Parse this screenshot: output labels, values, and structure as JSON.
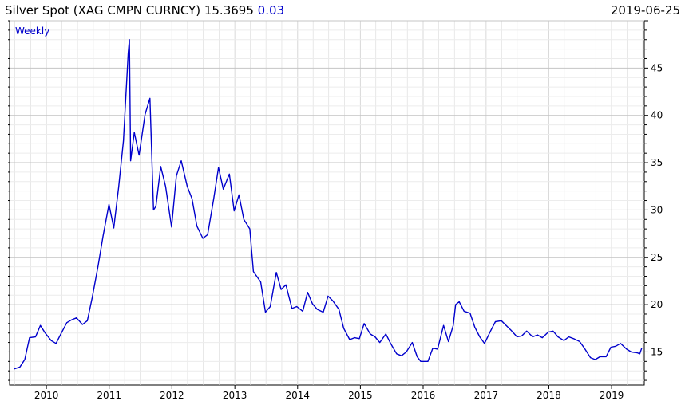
{
  "header": {
    "title": "Silver Spot (XAG CMPN CURNCY)",
    "price": "15.3695",
    "change": "0.03",
    "date": "2019-06-25"
  },
  "colors": {
    "line": "#0000cc",
    "grid": "#d8d8d8",
    "change": "#0000cc"
  },
  "chart_data": {
    "type": "line",
    "frequency_label": "Weekly",
    "x_tick_labels": [
      "2010",
      "2011",
      "2012",
      "2013",
      "2014",
      "2015",
      "2016",
      "2017",
      "2018",
      "2019"
    ],
    "y_tick_labels": [
      "15",
      "20",
      "25",
      "30",
      "35",
      "40",
      "45"
    ],
    "ylim": [
      11.5,
      50
    ],
    "xlim": [
      "2009-06-01",
      "2019-07-10"
    ],
    "grid": true,
    "y_axis_side": "right",
    "series": [
      {
        "x": [
          "2009-06-26",
          "2009-07-31",
          "2009-08-28",
          "2009-09-25",
          "2009-10-30",
          "2009-11-27",
          "2009-12-25",
          "2010-01-29",
          "2010-02-26",
          "2010-03-26",
          "2010-04-30",
          "2010-05-28",
          "2010-06-25",
          "2010-07-30",
          "2010-08-27",
          "2010-09-24",
          "2010-10-29",
          "2010-11-26",
          "2010-12-31",
          "2011-01-28",
          "2011-02-25",
          "2011-03-25",
          "2011-04-22",
          "2011-04-29",
          "2011-05-06",
          "2011-05-27",
          "2011-06-24",
          "2011-07-29",
          "2011-08-26",
          "2011-09-16",
          "2011-09-30",
          "2011-10-28",
          "2011-11-25",
          "2011-12-30",
          "2012-01-27",
          "2012-02-24",
          "2012-03-30",
          "2012-04-27",
          "2012-05-25",
          "2012-06-29",
          "2012-07-27",
          "2012-08-31",
          "2012-09-28",
          "2012-10-26",
          "2012-11-30",
          "2012-12-28",
          "2013-01-25",
          "2013-02-22",
          "2013-03-29",
          "2013-04-19",
          "2013-05-31",
          "2013-06-28",
          "2013-07-26",
          "2013-08-30",
          "2013-09-27",
          "2013-10-25",
          "2013-11-29",
          "2013-12-27",
          "2014-01-31",
          "2014-02-28",
          "2014-03-28",
          "2014-04-25",
          "2014-05-30",
          "2014-06-27",
          "2014-07-25",
          "2014-08-29",
          "2014-09-26",
          "2014-10-31",
          "2014-11-28",
          "2014-12-26",
          "2015-01-23",
          "2015-02-27",
          "2015-03-27",
          "2015-04-24",
          "2015-05-29",
          "2015-06-26",
          "2015-07-31",
          "2015-08-28",
          "2015-09-25",
          "2015-10-30",
          "2015-11-27",
          "2015-12-18",
          "2016-01-29",
          "2016-02-26",
          "2016-03-25",
          "2016-04-29",
          "2016-05-27",
          "2016-06-24",
          "2016-07-08",
          "2016-07-29",
          "2016-08-26",
          "2016-09-30",
          "2016-10-28",
          "2016-11-25",
          "2016-12-23",
          "2017-01-27",
          "2017-02-24",
          "2017-03-31",
          "2017-04-28",
          "2017-05-26",
          "2017-06-30",
          "2017-07-28",
          "2017-08-25",
          "2017-09-29",
          "2017-10-27",
          "2017-11-24",
          "2017-12-29",
          "2018-01-26",
          "2018-02-23",
          "2018-03-30",
          "2018-04-27",
          "2018-05-25",
          "2018-06-29",
          "2018-07-27",
          "2018-08-31",
          "2018-09-28",
          "2018-10-26",
          "2018-11-30",
          "2018-12-28",
          "2019-01-25",
          "2019-02-22",
          "2019-03-29",
          "2019-04-26",
          "2019-05-31",
          "2019-06-14",
          "2019-06-25"
        ],
        "values": [
          13.2,
          13.4,
          14.2,
          16.5,
          16.6,
          17.8,
          17.0,
          16.2,
          15.9,
          16.9,
          18.1,
          18.4,
          18.6,
          17.9,
          18.3,
          20.7,
          24.1,
          27.2,
          30.6,
          28.1,
          32.4,
          37.3,
          46.6,
          48.0,
          35.2,
          38.2,
          35.8,
          40.1,
          41.8,
          30.0,
          30.4,
          34.6,
          32.5,
          28.2,
          33.6,
          35.2,
          32.5,
          31.2,
          28.3,
          27.0,
          27.4,
          31.2,
          34.5,
          32.2,
          33.8,
          29.9,
          31.6,
          29.0,
          28.0,
          23.5,
          22.4,
          19.2,
          19.8,
          23.4,
          21.6,
          22.1,
          19.6,
          19.8,
          19.3,
          21.3,
          20.1,
          19.5,
          19.2,
          20.9,
          20.4,
          19.5,
          17.5,
          16.3,
          16.5,
          16.4,
          18.0,
          16.9,
          16.6,
          16.0,
          16.9,
          15.9,
          14.8,
          14.6,
          15.0,
          16.0,
          14.5,
          14.0,
          14.0,
          15.4,
          15.3,
          17.8,
          16.1,
          17.8,
          20.0,
          20.3,
          19.3,
          19.1,
          17.6,
          16.6,
          15.9,
          17.2,
          18.2,
          18.3,
          17.8,
          17.3,
          16.6,
          16.7,
          17.2,
          16.6,
          16.8,
          16.5,
          17.1,
          17.2,
          16.6,
          16.2,
          16.6,
          16.4,
          16.1,
          15.4,
          14.4,
          14.2,
          14.5,
          14.5,
          15.5,
          15.6,
          15.9,
          15.3,
          15.0,
          14.9,
          14.8,
          15.4
        ]
      }
    ]
  }
}
